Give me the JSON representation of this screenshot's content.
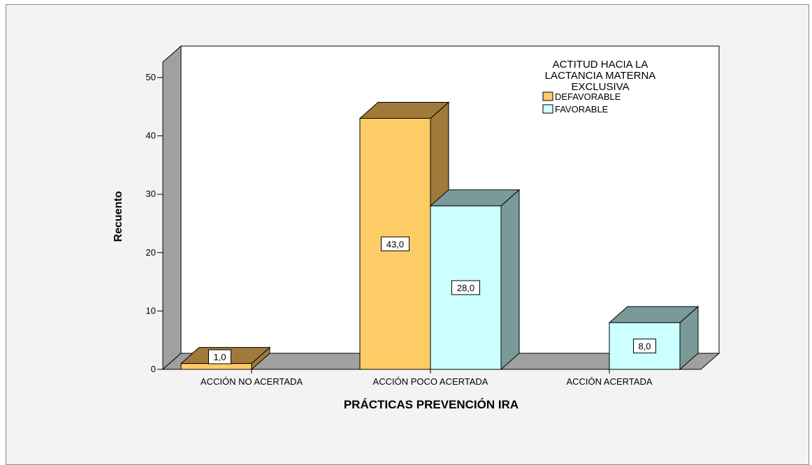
{
  "chart_data": {
    "type": "bar",
    "style": "3d-clustered",
    "xlabel": "PRÁCTICAS PREVENCIÓN IRA",
    "ylabel": "Recuento",
    "ylim": [
      0,
      50
    ],
    "yticks": [
      0,
      10,
      20,
      30,
      40,
      50
    ],
    "grid": false,
    "legend_position": "top-right",
    "legend_title": [
      "ACTITUD HACIA LA",
      "LACTANCIA MATERNA",
      "EXCLUSIVA"
    ],
    "categories": [
      "ACCIÓN NO ACERTADA",
      "ACCIÓN POCO ACERTADA",
      "ACCIÓN ACERTADA"
    ],
    "series": [
      {
        "name": "DEFAVORABLE",
        "color": "#fecc66",
        "side_color": "#a07a3a",
        "values": [
          1.0,
          43.0,
          null
        ],
        "labels": [
          "1,0",
          "43,0",
          ""
        ]
      },
      {
        "name": "FAVORABLE",
        "color": "#ccffff",
        "side_color": "#7a9a9a",
        "values": [
          null,
          28.0,
          8.0
        ],
        "labels": [
          "",
          "28,0",
          "8,0"
        ]
      }
    ]
  }
}
